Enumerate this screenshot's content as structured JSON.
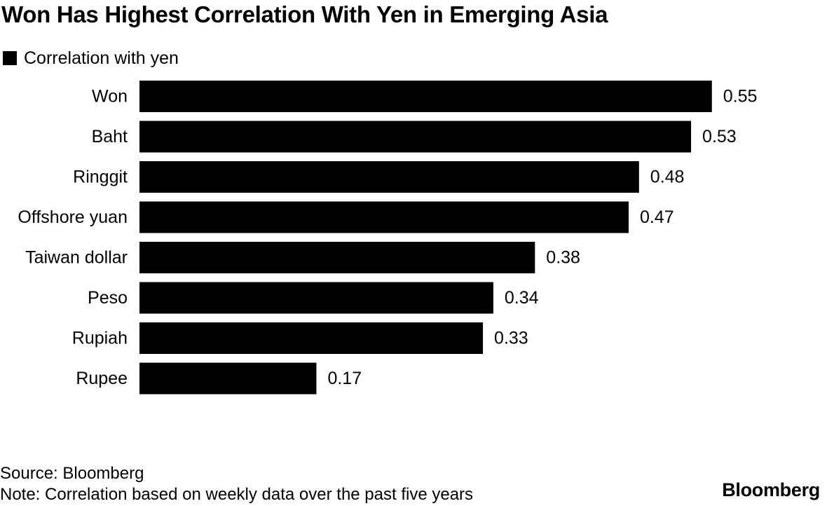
{
  "title": "Won Has Highest Correlation With Yen in Emerging Asia",
  "legend_label": "Correlation with yen",
  "chart_data": {
    "type": "bar",
    "orientation": "horizontal",
    "title": "Won Has Highest Correlation With Yen in Emerging Asia",
    "categories": [
      "Won",
      "Baht",
      "Ringgit",
      "Offshore yuan",
      "Taiwan dollar",
      "Peso",
      "Rupiah",
      "Rupee"
    ],
    "series": [
      {
        "name": "Correlation with yen",
        "values": [
          0.55,
          0.53,
          0.48,
          0.47,
          0.38,
          0.34,
          0.33,
          0.17
        ],
        "labels": [
          "0.55",
          "0.53",
          "0.48",
          "0.47",
          "0.38",
          "0.34",
          "0.33",
          "0.17"
        ],
        "color": "#000000"
      }
    ],
    "xlim": [
      0,
      0.6
    ],
    "xlabel": "",
    "ylabel": "",
    "grid": false,
    "legend": "top-left"
  },
  "source": "Source: Bloomberg",
  "note": "Note: Correlation based on weekly data over the past five years",
  "brand": "Bloomberg"
}
